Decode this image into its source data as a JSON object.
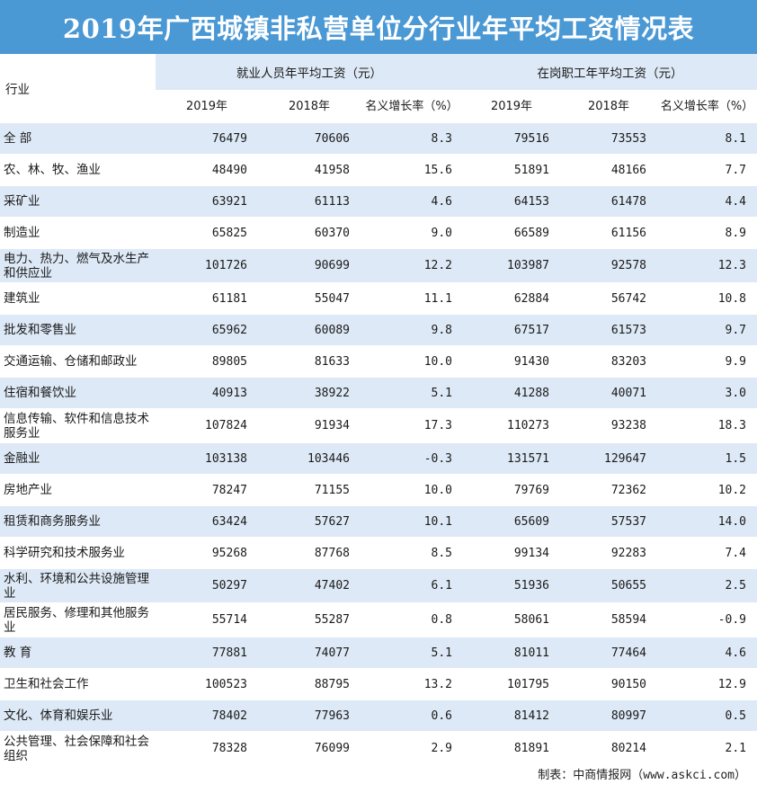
{
  "title": "2019年广西城镇非私营单位分行业年平均工资情况表",
  "header": {
    "industry": "行业",
    "group_a": "就业人员年平均工资（元）",
    "group_b": "在岗职工年平均工资（元）",
    "y2019": "2019年",
    "y2018": "2018年",
    "growth": "名义增长率（%）"
  },
  "rows": [
    {
      "name": "全 部",
      "a2019": "76479",
      "a2018": "70606",
      "ag": "8.3",
      "b2019": "79516",
      "b2018": "73553",
      "bg": "8.1"
    },
    {
      "name": "农、林、牧、渔业",
      "a2019": "48490",
      "a2018": "41958",
      "ag": "15.6",
      "b2019": "51891",
      "b2018": "48166",
      "bg": "7.7"
    },
    {
      "name": "采矿业",
      "a2019": "63921",
      "a2018": "61113",
      "ag": "4.6",
      "b2019": "64153",
      "b2018": "61478",
      "bg": "4.4"
    },
    {
      "name": "制造业",
      "a2019": "65825",
      "a2018": "60370",
      "ag": "9.0",
      "b2019": "66589",
      "b2018": "61156",
      "bg": "8.9"
    },
    {
      "name": "电力、热力、燃气及水生产和供应业",
      "a2019": "101726",
      "a2018": "90699",
      "ag": "12.2",
      "b2019": "103987",
      "b2018": "92578",
      "bg": "12.3"
    },
    {
      "name": "建筑业",
      "a2019": "61181",
      "a2018": "55047",
      "ag": "11.1",
      "b2019": "62884",
      "b2018": "56742",
      "bg": "10.8"
    },
    {
      "name": "批发和零售业",
      "a2019": "65962",
      "a2018": "60089",
      "ag": "9.8",
      "b2019": "67517",
      "b2018": "61573",
      "bg": "9.7"
    },
    {
      "name": "交通运输、仓储和邮政业",
      "a2019": "89805",
      "a2018": "81633",
      "ag": "10.0",
      "b2019": "91430",
      "b2018": "83203",
      "bg": "9.9"
    },
    {
      "name": "住宿和餐饮业",
      "a2019": "40913",
      "a2018": "38922",
      "ag": "5.1",
      "b2019": "41288",
      "b2018": "40071",
      "bg": "3.0"
    },
    {
      "name": "信息传输、软件和信息技术服务业",
      "a2019": "107824",
      "a2018": "91934",
      "ag": "17.3",
      "b2019": "110273",
      "b2018": "93238",
      "bg": "18.3"
    },
    {
      "name": "金融业",
      "a2019": "103138",
      "a2018": "103446",
      "ag": "-0.3",
      "b2019": "131571",
      "b2018": "129647",
      "bg": "1.5"
    },
    {
      "name": "房地产业",
      "a2019": "78247",
      "a2018": "71155",
      "ag": "10.0",
      "b2019": "79769",
      "b2018": "72362",
      "bg": "10.2"
    },
    {
      "name": "租赁和商务服务业",
      "a2019": "63424",
      "a2018": "57627",
      "ag": "10.1",
      "b2019": "65609",
      "b2018": "57537",
      "bg": "14.0"
    },
    {
      "name": "科学研究和技术服务业",
      "a2019": "95268",
      "a2018": "87768",
      "ag": "8.5",
      "b2019": "99134",
      "b2018": "92283",
      "bg": "7.4"
    },
    {
      "name": "水利、环境和公共设施管理业",
      "a2019": "50297",
      "a2018": "47402",
      "ag": "6.1",
      "b2019": "51936",
      "b2018": "50655",
      "bg": "2.5"
    },
    {
      "name": "居民服务、修理和其他服务业",
      "a2019": "55714",
      "a2018": "55287",
      "ag": "0.8",
      "b2019": "58061",
      "b2018": "58594",
      "bg": "-0.9"
    },
    {
      "name": "教 育",
      "a2019": "77881",
      "a2018": "74077",
      "ag": "5.1",
      "b2019": "81011",
      "b2018": "77464",
      "bg": "4.6"
    },
    {
      "name": "卫生和社会工作",
      "a2019": "100523",
      "a2018": "88795",
      "ag": "13.2",
      "b2019": "101795",
      "b2018": "90150",
      "bg": "12.9"
    },
    {
      "name": "文化、体育和娱乐业",
      "a2019": "78402",
      "a2018": "77963",
      "ag": "0.6",
      "b2019": "81412",
      "b2018": "80997",
      "bg": "0.5"
    },
    {
      "name": "公共管理、社会保障和社会组织",
      "a2019": "78328",
      "a2018": "76099",
      "ag": "2.9",
      "b2019": "81891",
      "b2018": "80214",
      "bg": "2.1"
    }
  ],
  "footer": {
    "label": "制表：中商情报网",
    "source": "（www.askci.com）"
  },
  "colors": {
    "title_bg": "#4a98d4",
    "band": "#dde9f6"
  }
}
